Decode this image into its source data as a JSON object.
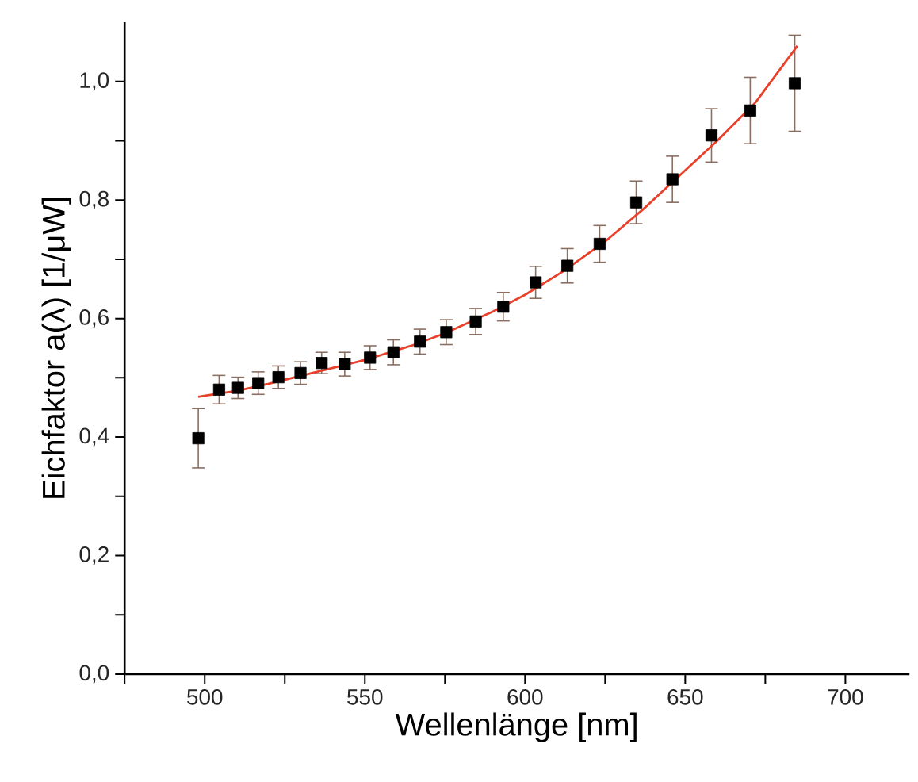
{
  "chart_data": {
    "type": "scatter",
    "xlabel": "Wellenlänge [nm]",
    "ylabel": "Eichfaktor a(λ) [1/μW]",
    "xlim": [
      475,
      720
    ],
    "ylim": [
      0,
      1.1
    ],
    "xticks": [
      {
        "value": 475,
        "label": null
      },
      500,
      {
        "value": 525,
        "label": null
      },
      550,
      {
        "value": 575,
        "label": null
      },
      600,
      {
        "value": 625,
        "label": null
      },
      650,
      {
        "value": 675,
        "label": null
      },
      700
    ],
    "yticks": [
      {
        "value": 0,
        "label": "0,0"
      },
      {
        "value": 0.1,
        "label": null
      },
      {
        "value": 0.2,
        "label": "0,2"
      },
      {
        "value": 0.3,
        "label": null
      },
      {
        "value": 0.4,
        "label": "0,4"
      },
      {
        "value": 0.5,
        "label": null
      },
      {
        "value": 0.6,
        "label": "0,6"
      },
      {
        "value": 0.7,
        "label": null
      },
      {
        "value": 0.8,
        "label": "0,8"
      },
      {
        "value": 0.9,
        "label": null
      },
      {
        "value": 1.0,
        "label": "1,0"
      }
    ],
    "series": [
      {
        "marker": "square",
        "color": "#000000",
        "x": [
          498,
          504.5,
          510.4,
          516.7,
          523,
          529.9,
          536.5,
          543.7,
          551.6,
          558.9,
          567.2,
          575.4,
          584.6,
          593.2,
          603.3,
          613.2,
          623.3,
          634.7,
          646,
          658.2,
          670.3,
          684.2
        ],
        "values": [
          0.398,
          0.48,
          0.483,
          0.491,
          0.501,
          0.508,
          0.525,
          0.523,
          0.534,
          0.543,
          0.561,
          0.577,
          0.595,
          0.62,
          0.661,
          0.689,
          0.726,
          0.796,
          0.835,
          0.909,
          0.951,
          0.997
        ],
        "errors": [
          0.05,
          0.024,
          0.018,
          0.019,
          0.019,
          0.019,
          0.018,
          0.02,
          0.02,
          0.021,
          0.021,
          0.021,
          0.022,
          0.024,
          0.027,
          0.029,
          0.031,
          0.036,
          0.039,
          0.045,
          0.056,
          0.081
        ]
      },
      {
        "type": "line",
        "marker": "none",
        "color": "#e8402a",
        "x": [
          498,
          510,
          520,
          535,
          550,
          565,
          575,
          590,
          600,
          612,
          625,
          637,
          650,
          660,
          672,
          685
        ],
        "values": [
          0.468,
          0.478,
          0.49,
          0.51,
          0.53,
          0.555,
          0.575,
          0.612,
          0.64,
          0.68,
          0.73,
          0.785,
          0.85,
          0.9,
          0.965,
          1.06
        ]
      }
    ]
  }
}
